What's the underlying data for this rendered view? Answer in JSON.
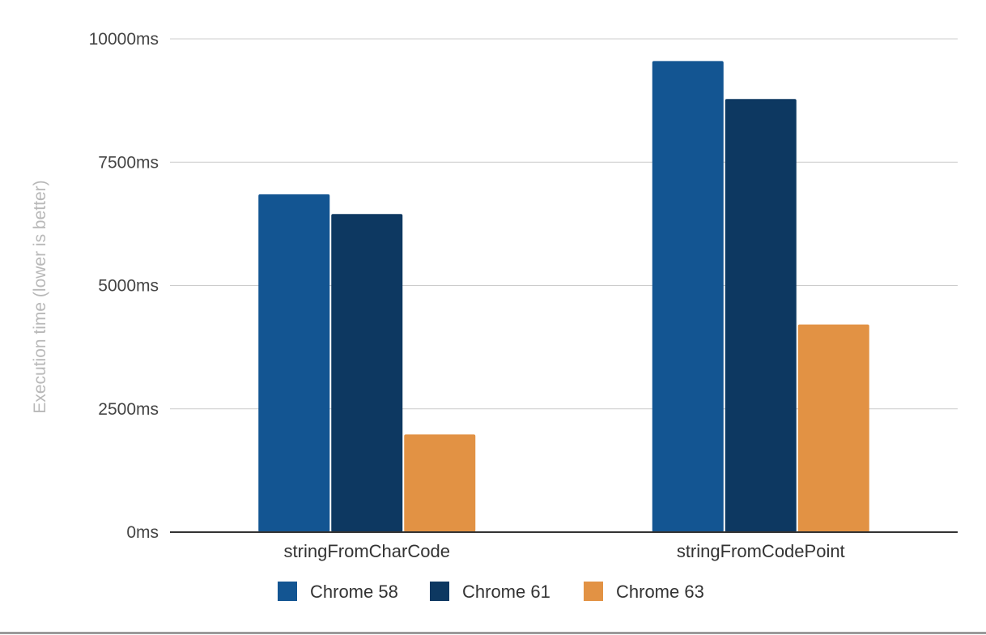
{
  "chart_data": {
    "type": "bar",
    "title": "",
    "xlabel": "",
    "ylabel": "Execution time (lower is better)",
    "ylim": [
      0,
      10000
    ],
    "yticks": [
      0,
      2500,
      5000,
      7500,
      10000
    ],
    "ytick_labels": [
      "0ms",
      "2500ms",
      "5000ms",
      "7500ms",
      "10000ms"
    ],
    "categories": [
      "stringFromCharCode",
      "stringFromCodePoint"
    ],
    "series": [
      {
        "name": "Chrome 58",
        "color": "#135592",
        "values": [
          6850,
          9550
        ]
      },
      {
        "name": "Chrome 61",
        "color": "#0d3861",
        "values": [
          6450,
          8780
        ]
      },
      {
        "name": "Chrome 63",
        "color": "#e29244",
        "values": [
          1980,
          4210
        ]
      }
    ],
    "grid": true,
    "legend_position": "bottom"
  }
}
